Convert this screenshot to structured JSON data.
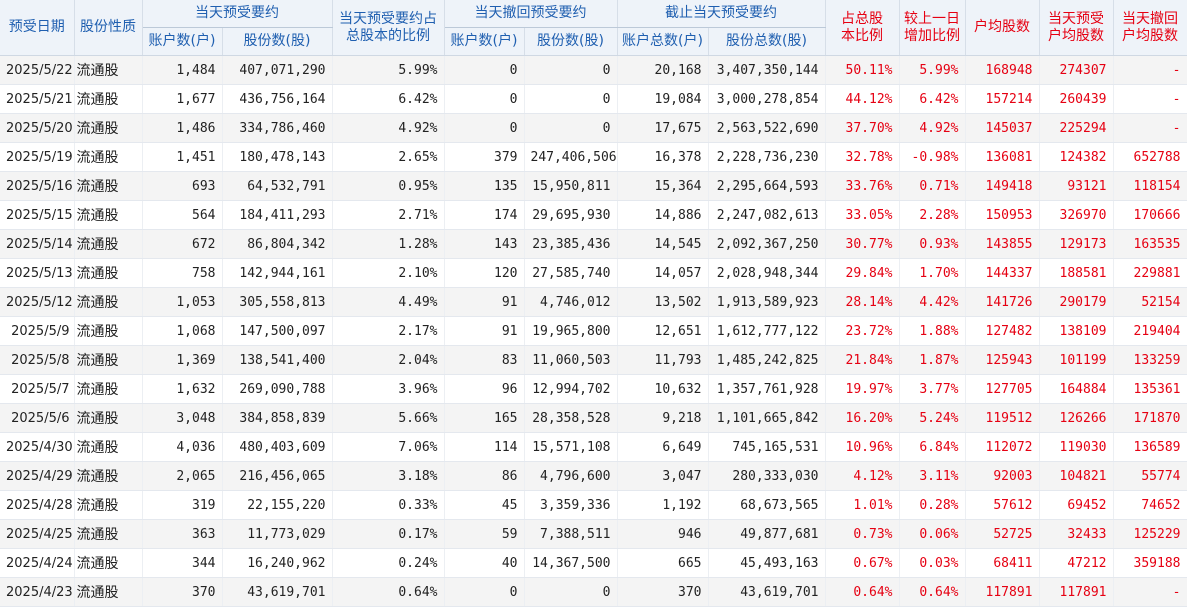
{
  "headers": {
    "date": "预受日期",
    "type": "股份性质",
    "today_accept": "当天预受要约",
    "today_ratio": "当天预受要约占总股本的比例",
    "today_withdraw": "当天撤回预受要约",
    "cum_accept": "截止当天预受要约",
    "pct_total": "占总股本比例",
    "day_change": "较上一日增加比例",
    "avg_shares": "户均股数",
    "today_avg": "当天预受户均股数",
    "withdraw_avg": "当天撤回户均股数",
    "accounts": "账户数(户)",
    "shares": "股份数(股)",
    "total_accounts": "账户总数(户)",
    "total_shares": "股份总数(股)"
  },
  "rows": [
    {
      "date": "2025/5/22",
      "type": "流通股",
      "acc": "1,484",
      "sh": "407,071,290",
      "ratio": "5.99%",
      "wacc": "0",
      "wsh": "0",
      "tacc": "20,168",
      "tsh": "3,407,350,144",
      "pct": "50.11%",
      "chg": "5.99%",
      "avg": "168948",
      "tavg": "274307",
      "wavg": "-"
    },
    {
      "date": "2025/5/21",
      "type": "流通股",
      "acc": "1,677",
      "sh": "436,756,164",
      "ratio": "6.42%",
      "wacc": "0",
      "wsh": "0",
      "tacc": "19,084",
      "tsh": "3,000,278,854",
      "pct": "44.12%",
      "chg": "6.42%",
      "avg": "157214",
      "tavg": "260439",
      "wavg": "-"
    },
    {
      "date": "2025/5/20",
      "type": "流通股",
      "acc": "1,486",
      "sh": "334,786,460",
      "ratio": "4.92%",
      "wacc": "0",
      "wsh": "0",
      "tacc": "17,675",
      "tsh": "2,563,522,690",
      "pct": "37.70%",
      "chg": "4.92%",
      "avg": "145037",
      "tavg": "225294",
      "wavg": "-"
    },
    {
      "date": "2025/5/19",
      "type": "流通股",
      "acc": "1,451",
      "sh": "180,478,143",
      "ratio": "2.65%",
      "wacc": "379",
      "wsh": "247,406,506",
      "tacc": "16,378",
      "tsh": "2,228,736,230",
      "pct": "32.78%",
      "chg": "-0.98%",
      "avg": "136081",
      "tavg": "124382",
      "wavg": "652788"
    },
    {
      "date": "2025/5/16",
      "type": "流通股",
      "acc": "693",
      "sh": "64,532,791",
      "ratio": "0.95%",
      "wacc": "135",
      "wsh": "15,950,811",
      "tacc": "15,364",
      "tsh": "2,295,664,593",
      "pct": "33.76%",
      "chg": "0.71%",
      "avg": "149418",
      "tavg": "93121",
      "wavg": "118154"
    },
    {
      "date": "2025/5/15",
      "type": "流通股",
      "acc": "564",
      "sh": "184,411,293",
      "ratio": "2.71%",
      "wacc": "174",
      "wsh": "29,695,930",
      "tacc": "14,886",
      "tsh": "2,247,082,613",
      "pct": "33.05%",
      "chg": "2.28%",
      "avg": "150953",
      "tavg": "326970",
      "wavg": "170666"
    },
    {
      "date": "2025/5/14",
      "type": "流通股",
      "acc": "672",
      "sh": "86,804,342",
      "ratio": "1.28%",
      "wacc": "143",
      "wsh": "23,385,436",
      "tacc": "14,545",
      "tsh": "2,092,367,250",
      "pct": "30.77%",
      "chg": "0.93%",
      "avg": "143855",
      "tavg": "129173",
      "wavg": "163535"
    },
    {
      "date": "2025/5/13",
      "type": "流通股",
      "acc": "758",
      "sh": "142,944,161",
      "ratio": "2.10%",
      "wacc": "120",
      "wsh": "27,585,740",
      "tacc": "14,057",
      "tsh": "2,028,948,344",
      "pct": "29.84%",
      "chg": "1.70%",
      "avg": "144337",
      "tavg": "188581",
      "wavg": "229881"
    },
    {
      "date": "2025/5/12",
      "type": "流通股",
      "acc": "1,053",
      "sh": "305,558,813",
      "ratio": "4.49%",
      "wacc": "91",
      "wsh": "4,746,012",
      "tacc": "13,502",
      "tsh": "1,913,589,923",
      "pct": "28.14%",
      "chg": "4.42%",
      "avg": "141726",
      "tavg": "290179",
      "wavg": "52154"
    },
    {
      "date": "2025/5/9",
      "type": "流通股",
      "acc": "1,068",
      "sh": "147,500,097",
      "ratio": "2.17%",
      "wacc": "91",
      "wsh": "19,965,800",
      "tacc": "12,651",
      "tsh": "1,612,777,122",
      "pct": "23.72%",
      "chg": "1.88%",
      "avg": "127482",
      "tavg": "138109",
      "wavg": "219404"
    },
    {
      "date": "2025/5/8",
      "type": "流通股",
      "acc": "1,369",
      "sh": "138,541,400",
      "ratio": "2.04%",
      "wacc": "83",
      "wsh": "11,060,503",
      "tacc": "11,793",
      "tsh": "1,485,242,825",
      "pct": "21.84%",
      "chg": "1.87%",
      "avg": "125943",
      "tavg": "101199",
      "wavg": "133259"
    },
    {
      "date": "2025/5/7",
      "type": "流通股",
      "acc": "1,632",
      "sh": "269,090,788",
      "ratio": "3.96%",
      "wacc": "96",
      "wsh": "12,994,702",
      "tacc": "10,632",
      "tsh": "1,357,761,928",
      "pct": "19.97%",
      "chg": "3.77%",
      "avg": "127705",
      "tavg": "164884",
      "wavg": "135361"
    },
    {
      "date": "2025/5/6",
      "type": "流通股",
      "acc": "3,048",
      "sh": "384,858,839",
      "ratio": "5.66%",
      "wacc": "165",
      "wsh": "28,358,528",
      "tacc": "9,218",
      "tsh": "1,101,665,842",
      "pct": "16.20%",
      "chg": "5.24%",
      "avg": "119512",
      "tavg": "126266",
      "wavg": "171870"
    },
    {
      "date": "2025/4/30",
      "type": "流通股",
      "acc": "4,036",
      "sh": "480,403,609",
      "ratio": "7.06%",
      "wacc": "114",
      "wsh": "15,571,108",
      "tacc": "6,649",
      "tsh": "745,165,531",
      "pct": "10.96%",
      "chg": "6.84%",
      "avg": "112072",
      "tavg": "119030",
      "wavg": "136589"
    },
    {
      "date": "2025/4/29",
      "type": "流通股",
      "acc": "2,065",
      "sh": "216,456,065",
      "ratio": "3.18%",
      "wacc": "86",
      "wsh": "4,796,600",
      "tacc": "3,047",
      "tsh": "280,333,030",
      "pct": "4.12%",
      "chg": "3.11%",
      "avg": "92003",
      "tavg": "104821",
      "wavg": "55774"
    },
    {
      "date": "2025/4/28",
      "type": "流通股",
      "acc": "319",
      "sh": "22,155,220",
      "ratio": "0.33%",
      "wacc": "45",
      "wsh": "3,359,336",
      "tacc": "1,192",
      "tsh": "68,673,565",
      "pct": "1.01%",
      "chg": "0.28%",
      "avg": "57612",
      "tavg": "69452",
      "wavg": "74652"
    },
    {
      "date": "2025/4/25",
      "type": "流通股",
      "acc": "363",
      "sh": "11,773,029",
      "ratio": "0.17%",
      "wacc": "59",
      "wsh": "7,388,511",
      "tacc": "946",
      "tsh": "49,877,681",
      "pct": "0.73%",
      "chg": "0.06%",
      "avg": "52725",
      "tavg": "32433",
      "wavg": "125229"
    },
    {
      "date": "2025/4/24",
      "type": "流通股",
      "acc": "344",
      "sh": "16,240,962",
      "ratio": "0.24%",
      "wacc": "40",
      "wsh": "14,367,500",
      "tacc": "665",
      "tsh": "45,493,163",
      "pct": "0.67%",
      "chg": "0.03%",
      "avg": "68411",
      "tavg": "47212",
      "wavg": "359188"
    },
    {
      "date": "2025/4/23",
      "type": "流通股",
      "acc": "370",
      "sh": "43,619,701",
      "ratio": "0.64%",
      "wacc": "0",
      "wsh": "0",
      "tacc": "370",
      "tsh": "43,619,701",
      "pct": "0.64%",
      "chg": "0.64%",
      "avg": "117891",
      "tavg": "117891",
      "wavg": "-"
    }
  ]
}
